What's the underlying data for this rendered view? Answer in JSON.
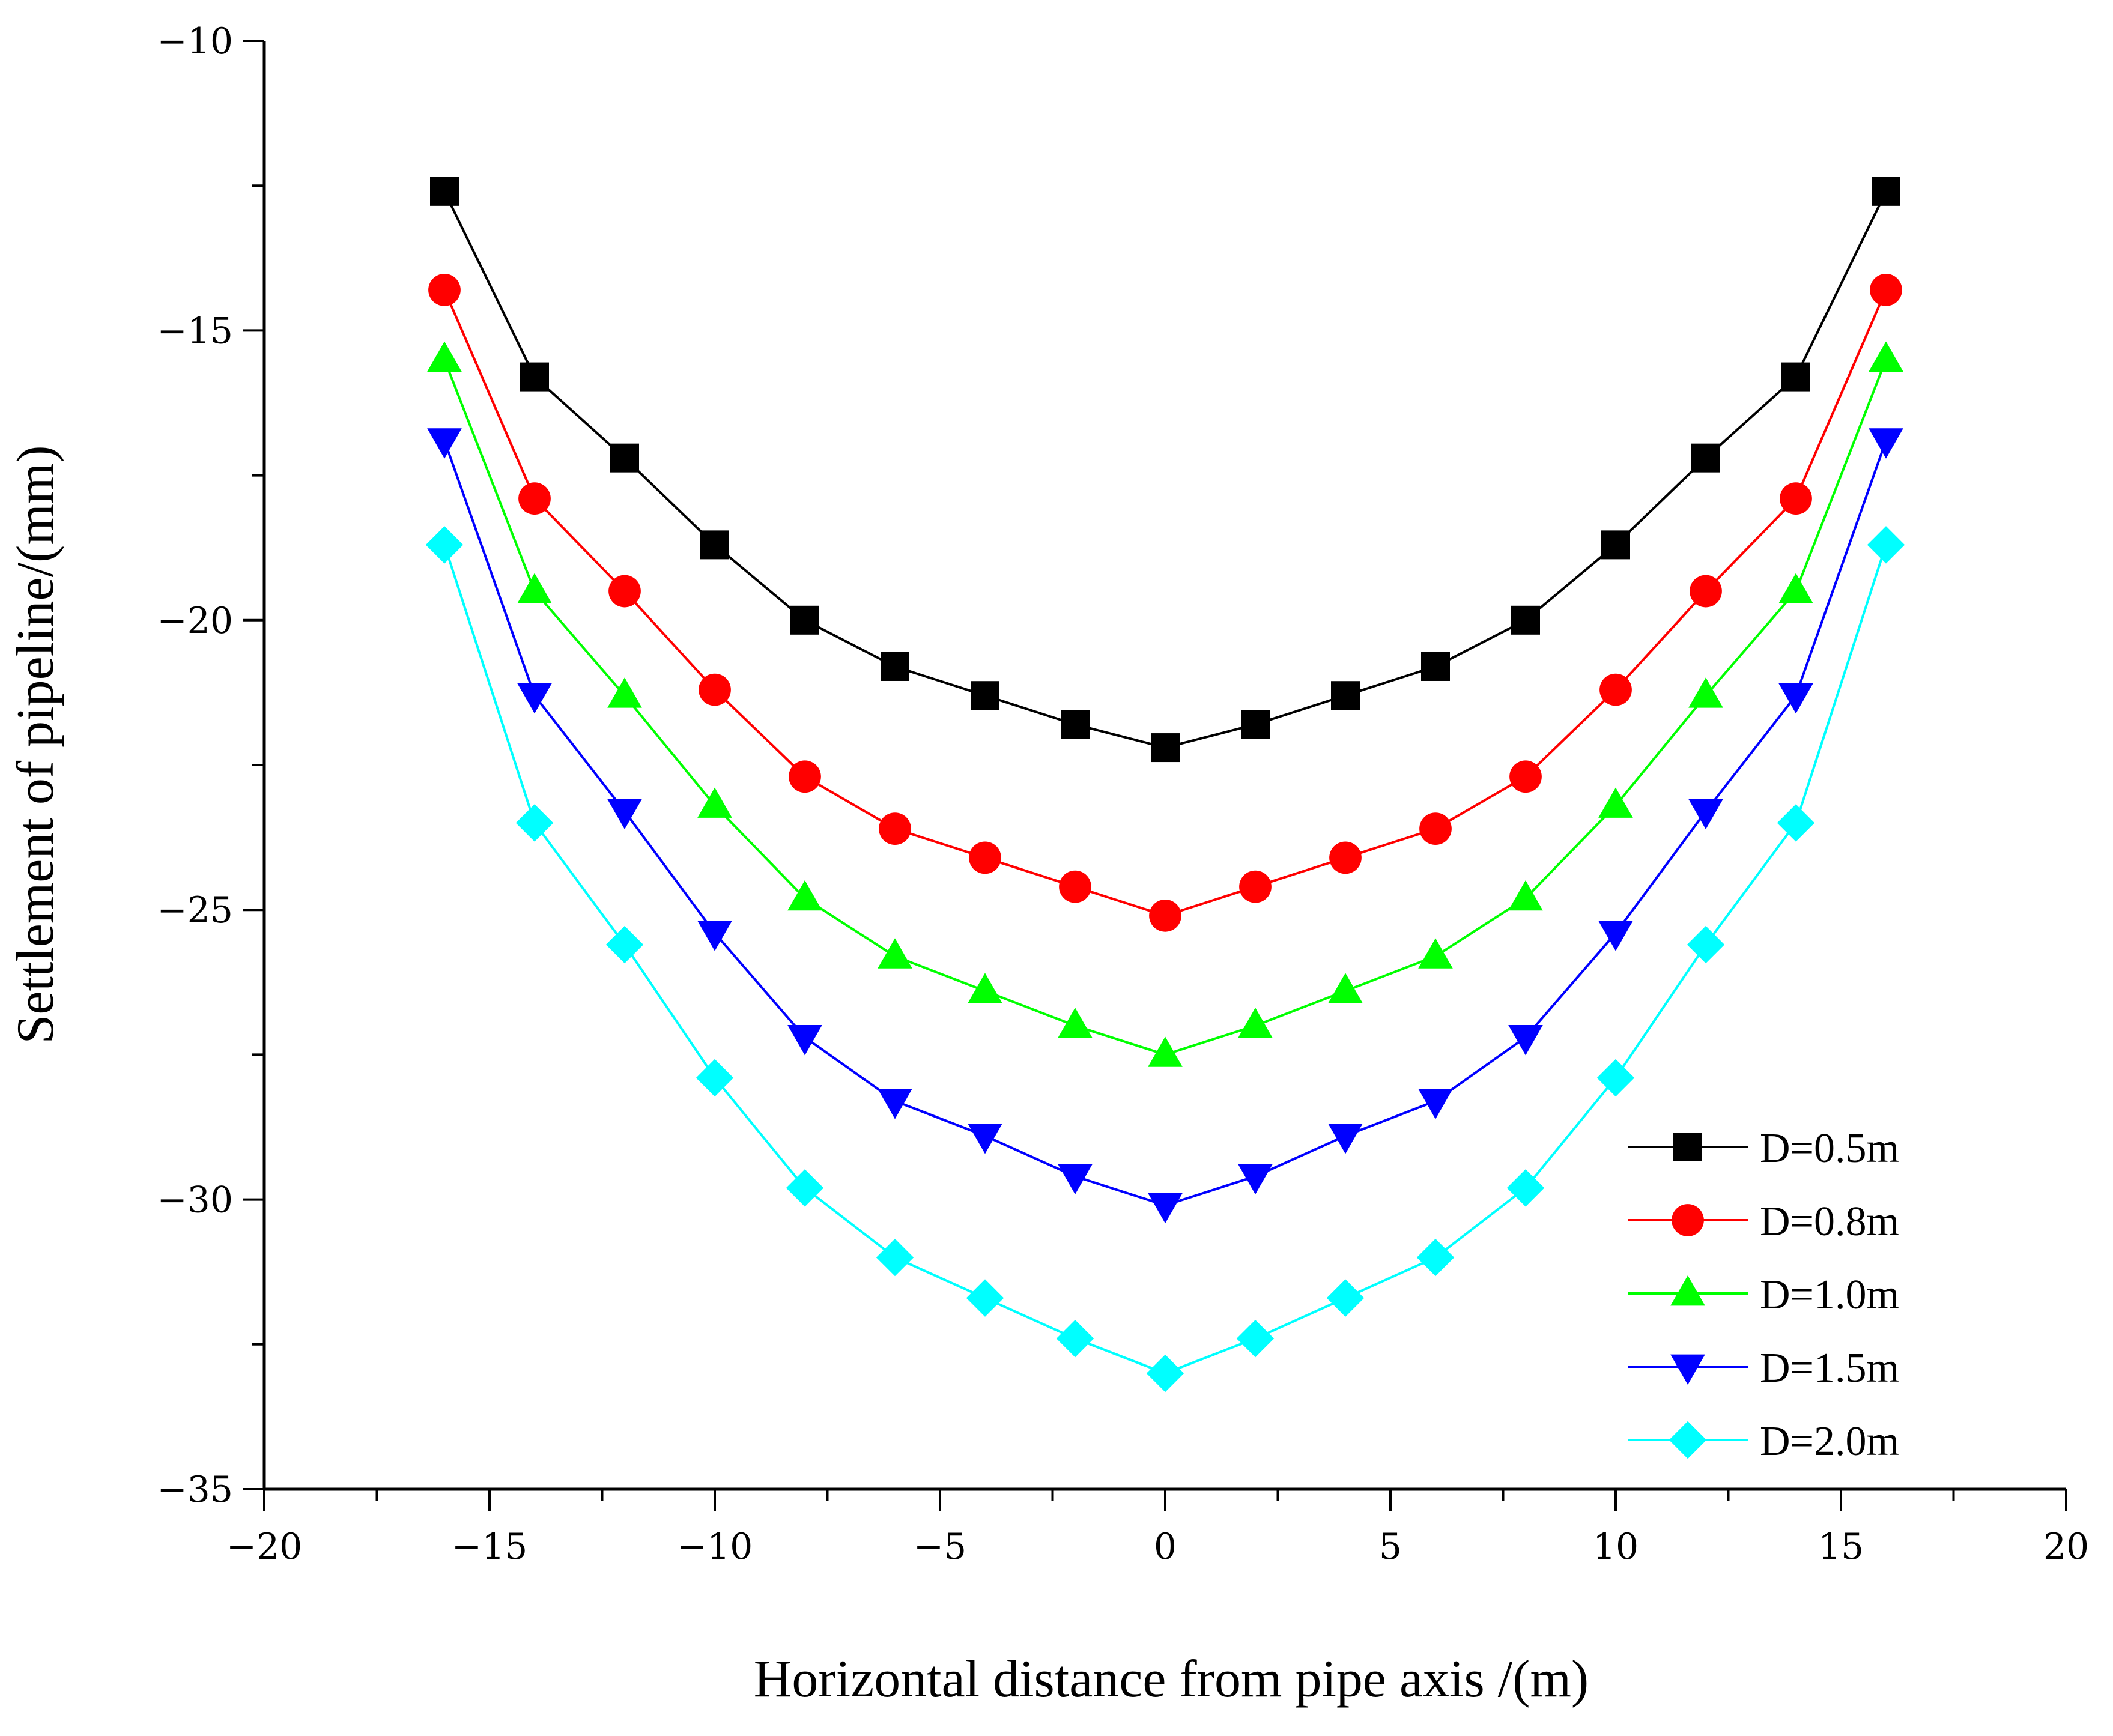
{
  "chart_data": {
    "type": "line",
    "title": "",
    "xlabel": "Horizontal distance from pipe axis /(m)",
    "ylabel": "Settlement of pipeline/(mm)",
    "xlim": [
      -20,
      20
    ],
    "ylim": [
      -35,
      -10
    ],
    "xticks": [
      -20,
      -15,
      -10,
      -5,
      0,
      5,
      10,
      15,
      20
    ],
    "xtick_labels": [
      "−20",
      "−15",
      "−10",
      "−5",
      "0",
      "5",
      "10",
      "15",
      "20"
    ],
    "yticks": [
      -35,
      -30,
      -25,
      -20,
      -15,
      -10
    ],
    "ytick_labels": [
      "−35",
      "−30",
      "−25",
      "−20",
      "−15",
      "−10"
    ],
    "grid": false,
    "legend_position": "bottom-right",
    "x": [
      -16,
      -14,
      -12,
      -10,
      -8,
      -6,
      -4,
      -2,
      0,
      2,
      4,
      6,
      8,
      10,
      12,
      14,
      16
    ],
    "series": [
      {
        "name": "D=0.5m",
        "color": "#000000",
        "marker": "square",
        "values": [
          -12.6,
          -15.8,
          -17.2,
          -18.7,
          -20.0,
          -20.8,
          -21.3,
          -21.8,
          -22.2,
          -21.8,
          -21.3,
          -20.8,
          -20.0,
          -18.7,
          -17.2,
          -15.8,
          -12.6
        ]
      },
      {
        "name": "D=0.8m",
        "color": "#ff0000",
        "marker": "circle",
        "values": [
          -14.3,
          -17.9,
          -19.5,
          -21.2,
          -22.7,
          -23.6,
          -24.1,
          -24.6,
          -25.1,
          -24.6,
          -24.1,
          -23.6,
          -22.7,
          -21.2,
          -19.5,
          -17.9,
          -14.3
        ]
      },
      {
        "name": "D=1.0m",
        "color": "#00ff00",
        "marker": "triangle-up",
        "values": [
          -15.5,
          -19.5,
          -21.3,
          -23.2,
          -24.8,
          -25.8,
          -26.4,
          -27.0,
          -27.5,
          -27.0,
          -26.4,
          -25.8,
          -24.8,
          -23.2,
          -21.3,
          -19.5,
          -15.5
        ]
      },
      {
        "name": "D=1.5m",
        "color": "#0000ff",
        "marker": "triangle-down",
        "values": [
          -16.9,
          -21.3,
          -23.3,
          -25.4,
          -27.2,
          -28.3,
          -28.9,
          -29.6,
          -30.1,
          -29.6,
          -28.9,
          -28.3,
          -27.2,
          -25.4,
          -23.3,
          -21.3,
          -16.9
        ]
      },
      {
        "name": "D=2.0m",
        "color": "#00ffff",
        "marker": "diamond",
        "values": [
          -18.7,
          -23.5,
          -25.6,
          -27.9,
          -29.8,
          -31.0,
          -31.7,
          -32.4,
          -33.0,
          -32.4,
          -31.7,
          -31.0,
          -29.8,
          -27.9,
          -25.6,
          -23.5,
          -18.7
        ]
      }
    ]
  }
}
